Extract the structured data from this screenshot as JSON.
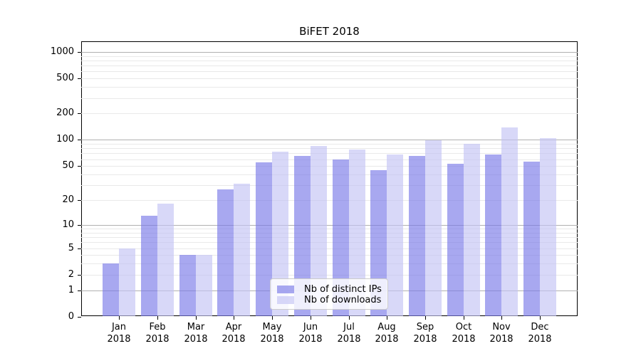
{
  "chart_data": {
    "type": "bar",
    "title": "BiFET 2018",
    "xlabel": "",
    "ylabel": "",
    "categories": [
      "Jan",
      "Feb",
      "Mar",
      "Apr",
      "May",
      "Jun",
      "Jul",
      "Aug",
      "Sep",
      "Oct",
      "Nov",
      "Dec"
    ],
    "year_label": "2018",
    "series": [
      {
        "name": "Nb of distinct IPs",
        "color": "rgba(121,121,232,0.65)",
        "values": [
          3,
          13,
          4,
          27,
          55,
          65,
          60,
          45,
          65,
          53,
          68,
          56
        ]
      },
      {
        "name": "Nb of downloads",
        "color": "rgba(195,195,244,0.65)",
        "values": [
          5,
          18,
          4,
          31,
          73,
          85,
          78,
          68,
          100,
          90,
          140,
          105
        ]
      }
    ],
    "yscale": "log1p",
    "ylim": [
      0,
      1400
    ],
    "yticks": [
      0,
      1,
      2,
      5,
      10,
      20,
      50,
      100,
      200,
      500,
      1000
    ],
    "major_gridlines": [
      1,
      10,
      100,
      1000
    ],
    "minor_gridlines": [
      2,
      3,
      4,
      5,
      6,
      7,
      8,
      9,
      20,
      30,
      40,
      50,
      60,
      70,
      80,
      90,
      200,
      300,
      400,
      500,
      600,
      700,
      800,
      900
    ],
    "grid_major_color": "#b0b0b0",
    "grid_minor_color": "#e9e9e9",
    "legend_position": "lower center",
    "grid": true
  }
}
